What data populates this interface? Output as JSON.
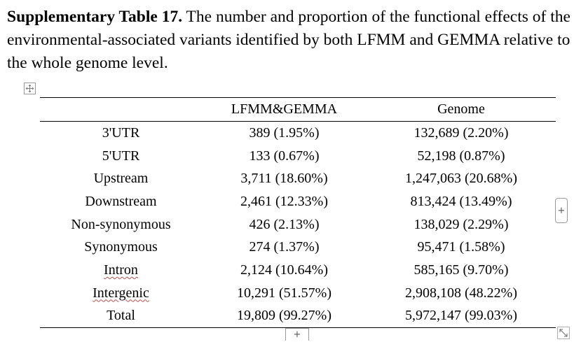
{
  "caption": {
    "label": "Supplementary Table 17.",
    "text": "The number and proportion of the functional effects of the environmental-associated variants identified by both LFMM and GEMMA relative to the whole genome level."
  },
  "table": {
    "headers": [
      "",
      "LFMM&GEMMA",
      "Genome"
    ],
    "rows": [
      {
        "category": "3'UTR",
        "lfmm_gemma": "389 (1.95%)",
        "genome": "132,689 (2.20%)"
      },
      {
        "category": "5'UTR",
        "lfmm_gemma": "133 (0.67%)",
        "genome": "52,198 (0.87%)"
      },
      {
        "category": "Upstream",
        "lfmm_gemma": "3,711 (18.60%)",
        "genome": "1,247,063 (20.68%)"
      },
      {
        "category": "Downstream",
        "lfmm_gemma": "2,461 (12.33%)",
        "genome": "813,424 (13.49%)"
      },
      {
        "category": "Non-synonymous",
        "lfmm_gemma": "426 (2.13%)",
        "genome": "138,029 (2.29%)"
      },
      {
        "category": "Synonymous",
        "lfmm_gemma": "274 (1.37%)",
        "genome": "95,471 (1.58%)"
      },
      {
        "category": "Intron",
        "lfmm_gemma": "2,124 (10.64%)",
        "genome": "585,165 (9.70%)"
      },
      {
        "category": "Intergenic",
        "lfmm_gemma": "10,291 (51.57%)",
        "genome": "2,908,108 (48.22%)"
      },
      {
        "category": "Total",
        "lfmm_gemma": "19,809 (99.27%)",
        "genome": "5,972,147 (99.03%)"
      }
    ]
  },
  "controls": {
    "add_column_glyph": "+",
    "add_row_glyph": "+"
  },
  "icons": {
    "table_move": "move-arrows-icon",
    "table_resize": "resize-diagonal-icon"
  }
}
